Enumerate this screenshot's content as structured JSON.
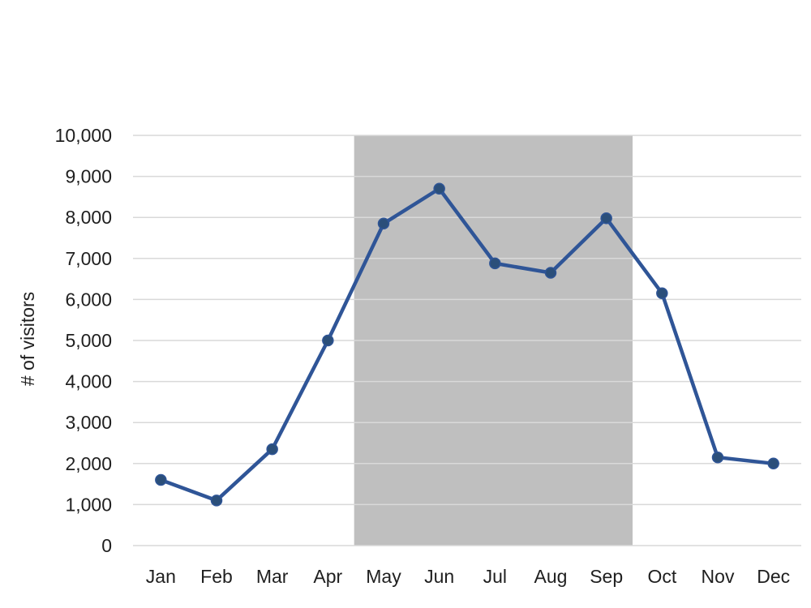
{
  "chart_data": {
    "type": "line",
    "categories": [
      "Jan",
      "Feb",
      "Mar",
      "Apr",
      "May",
      "Jun",
      "Jul",
      "Aug",
      "Sep",
      "Oct",
      "Nov",
      "Dec"
    ],
    "series": [
      {
        "values": [
          1600,
          1100,
          2350,
          5000,
          7850,
          8700,
          6880,
          6650,
          7980,
          6150,
          2150,
          2000
        ],
        "color": "#2f5597",
        "marker_color": "#2b4f7a"
      }
    ],
    "y_ticks": [
      "0",
      "1,000",
      "2,000",
      "3,000",
      "4,000",
      "5,000",
      "6,000",
      "7,000",
      "8,000",
      "9,000",
      "10,000"
    ],
    "title": "",
    "xlabel": "",
    "ylabel": "# of visitors",
    "ylim": [
      0,
      10000
    ],
    "y_tick_step": 1000,
    "grid": "horizontal",
    "highlight_range": {
      "from_category": "May",
      "to_category": "Sep",
      "color": "#bfbfbf"
    },
    "gridline_color": "#d9d9d9"
  }
}
